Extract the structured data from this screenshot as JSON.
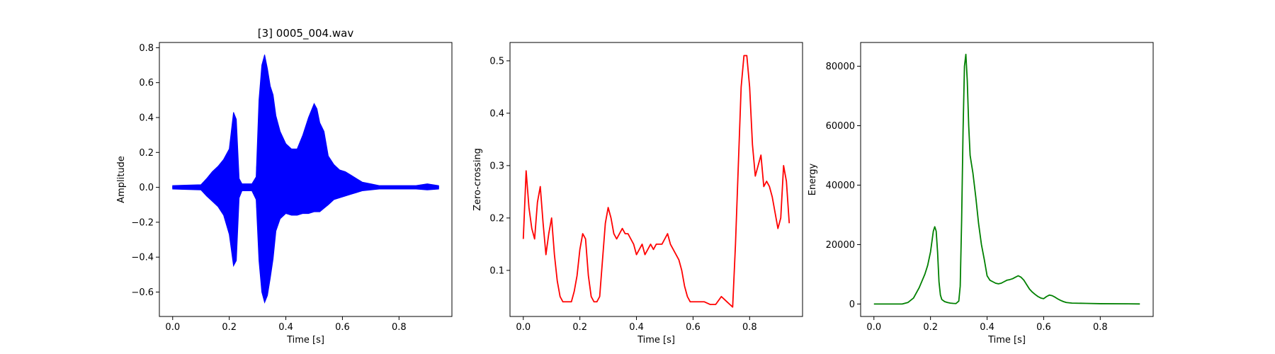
{
  "chart_data": [
    {
      "type": "line",
      "title": "[3] 0005_004.wav",
      "xlabel": "Time [s]",
      "ylabel": "Amplitude",
      "xlim": [
        -0.047,
        0.987
      ],
      "ylim": [
        -0.74,
        0.83
      ],
      "xticks": [
        0.0,
        0.2,
        0.4,
        0.6,
        0.8
      ],
      "xtick_labels": [
        "0.0",
        "0.2",
        "0.4",
        "0.6",
        "0.8"
      ],
      "yticks": [
        -0.6,
        -0.4,
        -0.2,
        0.0,
        0.2,
        0.4,
        0.6,
        0.8
      ],
      "ytick_labels": [
        "−0.6",
        "−0.4",
        "−0.2",
        "0.0",
        "0.2",
        "0.4",
        "0.6",
        "0.8"
      ],
      "color": "#0000ff",
      "grid": false,
      "render": "envelope",
      "series": [
        {
          "x": [
            0.0,
            0.1,
            0.12,
            0.14,
            0.16,
            0.18,
            0.2,
            0.215,
            0.225,
            0.235,
            0.245,
            0.26,
            0.28,
            0.295,
            0.305,
            0.315,
            0.325,
            0.335,
            0.345,
            0.355,
            0.365,
            0.38,
            0.4,
            0.42,
            0.44,
            0.46,
            0.48,
            0.5,
            0.51,
            0.52,
            0.535,
            0.55,
            0.57,
            0.59,
            0.61,
            0.63,
            0.65,
            0.67,
            0.7,
            0.73,
            0.76,
            0.8,
            0.86,
            0.9,
            0.94
          ],
          "upper": [
            0.01,
            0.015,
            0.05,
            0.09,
            0.12,
            0.16,
            0.22,
            0.43,
            0.39,
            0.05,
            0.02,
            0.02,
            0.02,
            0.06,
            0.5,
            0.7,
            0.76,
            0.68,
            0.58,
            0.53,
            0.41,
            0.32,
            0.25,
            0.22,
            0.22,
            0.3,
            0.4,
            0.48,
            0.45,
            0.37,
            0.32,
            0.18,
            0.13,
            0.1,
            0.09,
            0.07,
            0.05,
            0.03,
            0.02,
            0.01,
            0.01,
            0.01,
            0.01,
            0.02,
            0.01
          ],
          "lower": [
            -0.01,
            -0.015,
            -0.05,
            -0.08,
            -0.11,
            -0.16,
            -0.27,
            -0.45,
            -0.42,
            -0.06,
            -0.02,
            -0.02,
            -0.02,
            -0.07,
            -0.42,
            -0.6,
            -0.66,
            -0.62,
            -0.52,
            -0.41,
            -0.25,
            -0.18,
            -0.15,
            -0.16,
            -0.16,
            -0.15,
            -0.15,
            -0.14,
            -0.14,
            -0.14,
            -0.12,
            -0.1,
            -0.07,
            -0.06,
            -0.05,
            -0.04,
            -0.03,
            -0.02,
            -0.015,
            -0.01,
            -0.01,
            -0.01,
            -0.01,
            -0.015,
            -0.01
          ]
        }
      ]
    },
    {
      "type": "line",
      "title": "",
      "xlabel": "Time [s]",
      "ylabel": "Zero-crossing",
      "xlim": [
        -0.047,
        0.987
      ],
      "ylim": [
        0.012,
        0.535
      ],
      "xticks": [
        0.0,
        0.2,
        0.4,
        0.6,
        0.8
      ],
      "xtick_labels": [
        "0.0",
        "0.2",
        "0.4",
        "0.6",
        "0.8"
      ],
      "yticks": [
        0.1,
        0.2,
        0.3,
        0.4,
        0.5
      ],
      "ytick_labels": [
        "0.1",
        "0.2",
        "0.3",
        "0.4",
        "0.5"
      ],
      "color": "#ff0000",
      "grid": false,
      "render": "line",
      "series": [
        {
          "x": [
            0.0,
            0.01,
            0.02,
            0.03,
            0.04,
            0.05,
            0.06,
            0.07,
            0.08,
            0.09,
            0.1,
            0.11,
            0.12,
            0.13,
            0.14,
            0.15,
            0.16,
            0.17,
            0.18,
            0.19,
            0.2,
            0.21,
            0.22,
            0.23,
            0.24,
            0.25,
            0.26,
            0.27,
            0.28,
            0.29,
            0.3,
            0.31,
            0.32,
            0.33,
            0.34,
            0.35,
            0.36,
            0.37,
            0.38,
            0.39,
            0.4,
            0.41,
            0.42,
            0.43,
            0.44,
            0.45,
            0.46,
            0.47,
            0.48,
            0.49,
            0.5,
            0.51,
            0.52,
            0.53,
            0.54,
            0.55,
            0.56,
            0.57,
            0.58,
            0.59,
            0.6,
            0.62,
            0.64,
            0.66,
            0.68,
            0.7,
            0.71,
            0.72,
            0.73,
            0.74,
            0.75,
            0.76,
            0.77,
            0.78,
            0.79,
            0.8,
            0.81,
            0.82,
            0.83,
            0.84,
            0.85,
            0.86,
            0.87,
            0.88,
            0.89,
            0.9,
            0.91,
            0.92,
            0.93,
            0.94
          ],
          "y": [
            0.16,
            0.29,
            0.22,
            0.18,
            0.16,
            0.23,
            0.26,
            0.19,
            0.13,
            0.17,
            0.2,
            0.13,
            0.08,
            0.05,
            0.04,
            0.04,
            0.04,
            0.04,
            0.06,
            0.09,
            0.14,
            0.17,
            0.16,
            0.09,
            0.05,
            0.04,
            0.04,
            0.05,
            0.12,
            0.19,
            0.22,
            0.2,
            0.17,
            0.16,
            0.17,
            0.18,
            0.17,
            0.17,
            0.16,
            0.15,
            0.13,
            0.14,
            0.15,
            0.13,
            0.14,
            0.15,
            0.14,
            0.15,
            0.15,
            0.15,
            0.16,
            0.17,
            0.15,
            0.14,
            0.13,
            0.12,
            0.1,
            0.07,
            0.05,
            0.04,
            0.04,
            0.04,
            0.04,
            0.035,
            0.035,
            0.05,
            0.045,
            0.04,
            0.035,
            0.03,
            0.15,
            0.3,
            0.45,
            0.51,
            0.51,
            0.45,
            0.34,
            0.28,
            0.3,
            0.32,
            0.26,
            0.27,
            0.26,
            0.24,
            0.21,
            0.18,
            0.2,
            0.3,
            0.27,
            0.19
          ]
        }
      ]
    },
    {
      "type": "line",
      "title": "",
      "xlabel": "Time [s]",
      "ylabel": "Energy",
      "xlim": [
        -0.047,
        0.987
      ],
      "ylim": [
        -4200,
        88000
      ],
      "xticks": [
        0.0,
        0.2,
        0.4,
        0.6,
        0.8
      ],
      "xtick_labels": [
        "0.0",
        "0.2",
        "0.4",
        "0.6",
        "0.8"
      ],
      "yticks": [
        0,
        20000,
        40000,
        60000,
        80000
      ],
      "ytick_labels": [
        "0",
        "20000",
        "40000",
        "60000",
        "80000"
      ],
      "color": "#008000",
      "grid": false,
      "render": "line",
      "series": [
        {
          "x": [
            0.0,
            0.1,
            0.12,
            0.14,
            0.16,
            0.18,
            0.19,
            0.2,
            0.205,
            0.21,
            0.215,
            0.22,
            0.225,
            0.23,
            0.235,
            0.24,
            0.25,
            0.26,
            0.27,
            0.28,
            0.29,
            0.3,
            0.305,
            0.31,
            0.315,
            0.32,
            0.325,
            0.33,
            0.335,
            0.34,
            0.345,
            0.35,
            0.36,
            0.37,
            0.38,
            0.39,
            0.4,
            0.41,
            0.42,
            0.43,
            0.44,
            0.45,
            0.46,
            0.47,
            0.48,
            0.49,
            0.5,
            0.51,
            0.52,
            0.53,
            0.54,
            0.55,
            0.56,
            0.57,
            0.58,
            0.59,
            0.6,
            0.61,
            0.62,
            0.63,
            0.64,
            0.65,
            0.66,
            0.67,
            0.68,
            0.7,
            0.75,
            0.8,
            0.9,
            0.94
          ],
          "y": [
            0,
            0,
            500,
            2000,
            5500,
            10000,
            13000,
            17500,
            21000,
            24500,
            26000,
            24500,
            17500,
            7500,
            3000,
            1500,
            800,
            500,
            300,
            200,
            150,
            1000,
            6000,
            28000,
            58000,
            80000,
            84000,
            75000,
            60000,
            50000,
            47000,
            44000,
            36000,
            27000,
            20000,
            15000,
            9500,
            8000,
            7500,
            7000,
            6800,
            7000,
            7500,
            8000,
            8200,
            8500,
            9000,
            9500,
            9000,
            8000,
            6500,
            5000,
            4000,
            3200,
            2500,
            2000,
            1800,
            2500,
            3000,
            2800,
            2300,
            1700,
            1200,
            800,
            500,
            300,
            200,
            100,
            50,
            20
          ]
        }
      ]
    }
  ]
}
